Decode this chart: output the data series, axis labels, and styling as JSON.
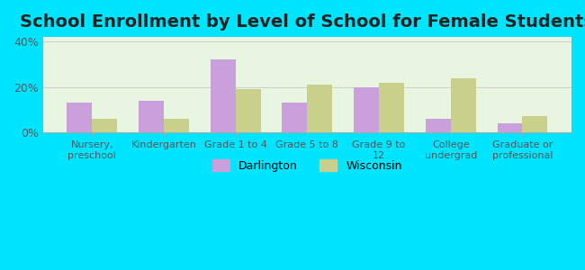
{
  "title": "School Enrollment by Level of School for Female Students",
  "categories": [
    "Nursery,\npreschool",
    "Kindergarten",
    "Grade 1 to 4",
    "Grade 5 to 8",
    "Grade 9 to\n12",
    "College\nundergrad",
    "Graduate or\nprofessional"
  ],
  "darlington": [
    13,
    14,
    32,
    13,
    20,
    6,
    4
  ],
  "wisconsin": [
    6,
    6,
    19,
    21,
    22,
    24,
    7
  ],
  "darlington_color": "#c9a0dc",
  "wisconsin_color": "#c8d08c",
  "ylim": [
    0,
    42
  ],
  "yticks": [
    0,
    20,
    40
  ],
  "ytick_labels": [
    "0%",
    "20%",
    "40%"
  ],
  "background_color": "#00e5ff",
  "plot_bg_start": "#f0fff0",
  "plot_bg_end": "#ffffff",
  "title_fontsize": 14,
  "legend_labels": [
    "Darlington",
    "Wisconsin"
  ],
  "bar_width": 0.35
}
